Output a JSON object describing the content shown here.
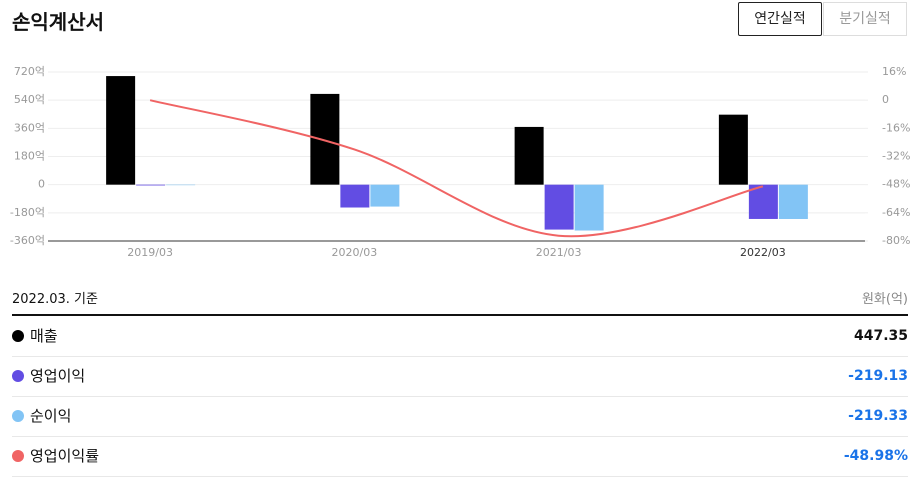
{
  "header": {
    "title": "손익계산서",
    "tabs": [
      "연간실적",
      "분기실적"
    ]
  },
  "chart_data": {
    "type": "bar",
    "categories": [
      "2019/03",
      "2020/03",
      "2021/03",
      "2022/03"
    ],
    "series": [
      {
        "name": "매출",
        "color": "#000000",
        "values": [
          694,
          580,
          369,
          447.35
        ]
      },
      {
        "name": "영업이익",
        "color": "#624de3",
        "values": [
          -5,
          -146,
          -287,
          -219.13
        ]
      },
      {
        "name": "순이익",
        "color": "#82c4f5",
        "values": [
          -3,
          -140,
          -293,
          -219.33
        ]
      },
      {
        "name": "영업이익률",
        "color": "#f06464",
        "type": "line",
        "axis": "y2",
        "values": [
          0,
          -28,
          -77,
          -48.98
        ]
      }
    ],
    "ylim": [
      -360,
      720
    ],
    "yticks": [
      {
        "value": -360,
        "label": "-360억"
      },
      {
        "value": -180,
        "label": "-180억"
      },
      0,
      {
        "value": 180,
        "label": "180억"
      },
      {
        "value": 360,
        "label": "360억"
      },
      {
        "value": 540,
        "label": "540억"
      },
      {
        "value": 720,
        "label": "720억"
      }
    ],
    "y2lim": [
      -80,
      16
    ],
    "y2ticks": [
      {
        "value": -80,
        "label": "-80%"
      },
      {
        "value": -64,
        "label": "-64%"
      },
      {
        "value": -48,
        "label": "-48%"
      },
      {
        "value": -32,
        "label": "-32%"
      },
      {
        "value": -16,
        "label": "-16%"
      },
      0,
      {
        "value": 16,
        "label": "16%"
      }
    ],
    "grid": true
  },
  "table": {
    "basis": "2022.03. 기준",
    "unit": "원화(억)",
    "rows": [
      {
        "label": "매출",
        "value": "447.35"
      },
      {
        "label": "영업이익",
        "value": "-219.13"
      },
      {
        "label": "순이익",
        "value": "-219.33"
      },
      {
        "label": "영업이익률",
        "value": "-48.98%"
      }
    ]
  }
}
